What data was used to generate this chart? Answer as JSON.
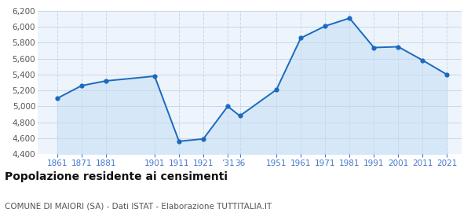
{
  "years": [
    1861,
    1871,
    1881,
    1901,
    1911,
    1921,
    1931,
    1936,
    1951,
    1961,
    1971,
    1981,
    1991,
    2001,
    2011,
    2021
  ],
  "values": [
    5100,
    5260,
    5320,
    5380,
    4560,
    4590,
    5000,
    4880,
    5210,
    5860,
    6010,
    6110,
    5740,
    5750,
    5580,
    5400
  ],
  "x_tick_positions": [
    1861,
    1871,
    1881,
    1901,
    1911,
    1921,
    1931,
    1936,
    1951,
    1961,
    1971,
    1981,
    1991,
    2001,
    2011,
    2021
  ],
  "x_tick_labels": [
    "1861",
    "1871",
    "1881",
    "1901",
    "1911",
    "1921",
    "’31",
    "36",
    "1951",
    "1961",
    "1971",
    "1981",
    "1991",
    "2001",
    "2011",
    "2021"
  ],
  "ylim": [
    4400,
    6200
  ],
  "yticks": [
    4400,
    4600,
    4800,
    5000,
    5200,
    5400,
    5600,
    5800,
    6000,
    6200
  ],
  "ytick_labels": [
    "4,400",
    "4,600",
    "4,800",
    "5,000",
    "5,200",
    "5,400",
    "5,600",
    "5,800",
    "6,000",
    "6,200"
  ],
  "xlim_left": 1853,
  "xlim_right": 2027,
  "line_color": "#1b6abf",
  "fill_color": "#d6e8f7",
  "marker_color": "#1b6abf",
  "marker_size": 20,
  "background_color": "#edf4fb",
  "grid_color": "#c8d8ea",
  "title": "Popolazione residente ai censimenti",
  "subtitle": "COMUNE DI MAIORI (SA) - Dati ISTAT - Elaborazione TUTTITALIA.IT",
  "title_fontsize": 10,
  "subtitle_fontsize": 7.5,
  "ytick_fontsize": 7.5,
  "xtick_fontsize": 7.5,
  "tick_label_color_x": "#4477cc",
  "tick_label_color_y": "#555555"
}
